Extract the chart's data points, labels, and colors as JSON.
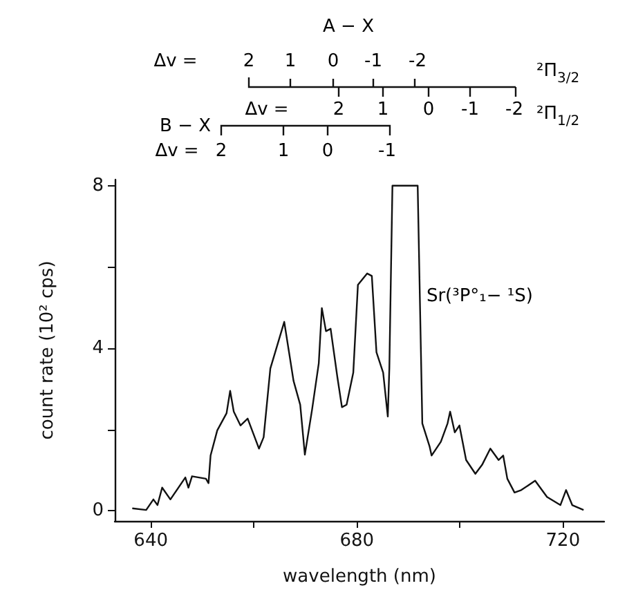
{
  "chart_data": {
    "type": "line",
    "xlabel": "wavelength (nm)",
    "ylabel": "count rate (10² cps)",
    "color": "#111111",
    "x": [
      636.4,
      639.1,
      640.5,
      641.3,
      642.2,
      643.8,
      646.7,
      647.3,
      648.0,
      650.7,
      651.2,
      651.6,
      652.9,
      654.7,
      655.4,
      656.1,
      657.4,
      658.8,
      661.0,
      661.9,
      663.2,
      665.9,
      667.7,
      669.0,
      669.9,
      671.3,
      672.6,
      673.2,
      674.0,
      674.9,
      676.2,
      677.1,
      678.0,
      679.3,
      680.2,
      682.0,
      682.9,
      683.8,
      685.1,
      686.0,
      686.3,
      686.9,
      691.8,
      692.7,
      694.1,
      694.5,
      696.3,
      697.6,
      698.1,
      699.0,
      699.9,
      701.2,
      703.0,
      704.3,
      705.9,
      707.5,
      708.4,
      709.2,
      710.6,
      711.9,
      714.6,
      716.9,
      719.5,
      720.6,
      721.8,
      724.0
    ],
    "values": [
      0.06,
      0.02,
      0.28,
      0.14,
      0.57,
      0.28,
      0.82,
      0.57,
      0.85,
      0.79,
      0.68,
      1.36,
      1.98,
      2.4,
      2.95,
      2.44,
      2.1,
      2.27,
      1.53,
      1.81,
      3.5,
      4.65,
      3.2,
      2.61,
      1.38,
      2.49,
      3.63,
      4.99,
      4.42,
      4.48,
      3.3,
      2.55,
      2.61,
      3.4,
      5.56,
      5.84,
      5.78,
      3.9,
      3.4,
      2.32,
      3.51,
      8.0,
      8.0,
      2.15,
      1.59,
      1.36,
      1.7,
      2.15,
      2.44,
      1.93,
      2.1,
      1.25,
      0.91,
      1.13,
      1.53,
      1.25,
      1.36,
      0.79,
      0.45,
      0.51,
      0.74,
      0.34,
      0.14,
      0.51,
      0.14,
      0.02
    ],
    "xlim": [
      633,
      728
    ],
    "ylim": [
      -0.25,
      8.15
    ],
    "xticks": [
      640,
      {
        "value": 660,
        "label": null
      },
      680,
      {
        "value": 700,
        "label": null
      },
      720
    ],
    "yticks": [
      0,
      {
        "value": 2,
        "label": null
      },
      4,
      {
        "value": 6,
        "label": null
      },
      8
    ],
    "annotations": [
      "A − X",
      "Δv =",
      "2",
      "1",
      "0",
      "-1",
      "-2",
      "²Π$_{3/2}$",
      "Δv =",
      "2",
      "1",
      "0",
      "-1",
      "-2",
      "²Π$_{1/2}$",
      "B − X",
      "Δv =",
      "2",
      "1",
      "0",
      "-1",
      {
        "text": "Sr(³P°₁− ¹S)",
        "x": 693.5,
        "y": 5.4
      }
    ]
  }
}
